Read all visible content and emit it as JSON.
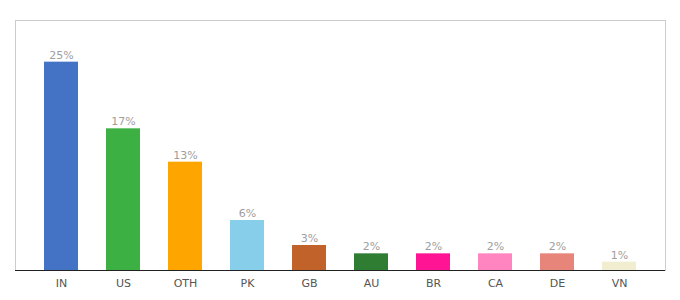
{
  "chart_data": {
    "type": "bar",
    "categories": [
      "IN",
      "US",
      "OTH",
      "PK",
      "GB",
      "AU",
      "BR",
      "CA",
      "DE",
      "VN"
    ],
    "values": [
      25,
      17,
      13,
      6,
      3,
      2,
      2,
      2,
      2,
      1
    ],
    "value_labels": [
      "25%",
      "17%",
      "13%",
      "6%",
      "3%",
      "2%",
      "2%",
      "2%",
      "2%",
      "1%"
    ],
    "colors": [
      "#4472C4",
      "#3CB043",
      "#FFA500",
      "#87CEEB",
      "#C0622A",
      "#2E7D32",
      "#FF1493",
      "#FF85C0",
      "#E8857A",
      "#F0EDD0"
    ],
    "ylim": [
      0,
      30
    ],
    "data_labels": true,
    "tick_labels": "x"
  }
}
